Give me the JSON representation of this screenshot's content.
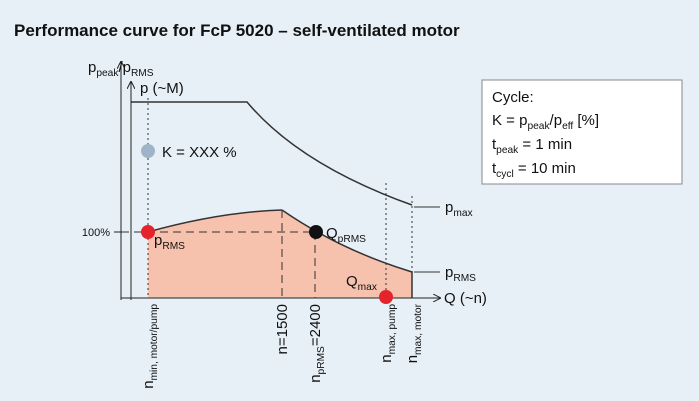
{
  "header": {
    "title": "Performance curve for FcP 5020 – self-ventilated motor"
  },
  "diagram": {
    "y_axis_label": [
      "p",
      "peak",
      "/p",
      "RMS"
    ],
    "p_axis_label": [
      "p (~M)"
    ],
    "k_label": [
      "K = XXX %"
    ],
    "tick_100": [
      "100%"
    ],
    "p_rms_point": [
      "p",
      "RMS"
    ],
    "q_prms": [
      "Q",
      "pRMS"
    ],
    "q_max": [
      "Q",
      "max"
    ],
    "p_max_curve": [
      "p",
      "max"
    ],
    "p_rms_curve": [
      "p",
      "RMS"
    ],
    "x_axis_label": [
      "Q (~n)"
    ],
    "x_labels": [
      [
        "n",
        "min, motor/pump"
      ],
      [
        "n=1500"
      ],
      [
        "n",
        "pRMS",
        "=2400"
      ],
      [
        "n",
        "max, pump"
      ],
      [
        "n",
        "max, motor"
      ]
    ]
  },
  "legend_box": {
    "lines": [
      [
        "Cycle:"
      ],
      [
        "K = p",
        "peak",
        "/p",
        "eff",
        " [%]"
      ],
      [
        "t",
        "peak",
        " = 1 min"
      ],
      [
        "t",
        "cycl",
        " = 10 min"
      ]
    ]
  }
}
